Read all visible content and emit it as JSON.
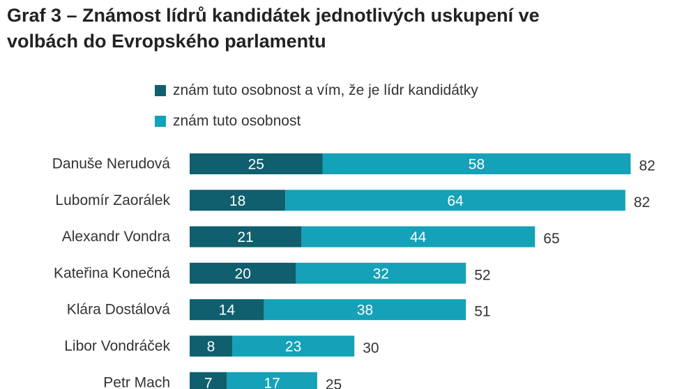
{
  "title_lines": [
    "Graf 3 – Známost lídrů kandidátek jednotlivých uskupení ve",
    "volbách do Evropského parlamentu"
  ],
  "chart_data": {
    "type": "bar",
    "orientation": "horizontal",
    "stacked": true,
    "title": "Graf 3 – Známost lídrů kandidátek jednotlivých uskupení ve volbách do Evropského parlamentu",
    "categories": [
      "Danuše Nerudová",
      "Lubomír Zaorálek",
      "Alexandr Vondra",
      "Kateřina Konečná",
      "Klára Dostálová",
      "Libor Vondráček",
      "Petr Mach"
    ],
    "series": [
      {
        "name": "znám tuto osobnost a vím, že je lídr kandidátky",
        "color": "#0f5f6e",
        "values": [
          25,
          18,
          21,
          20,
          14,
          8,
          7
        ]
      },
      {
        "name": "znám tuto osobnost",
        "color": "#15a1b8",
        "values": [
          58,
          64,
          44,
          32,
          38,
          23,
          17
        ]
      }
    ],
    "totals": [
      82,
      82,
      65,
      52,
      51,
      30,
      25
    ],
    "legend_position": "top",
    "grid": false
  }
}
